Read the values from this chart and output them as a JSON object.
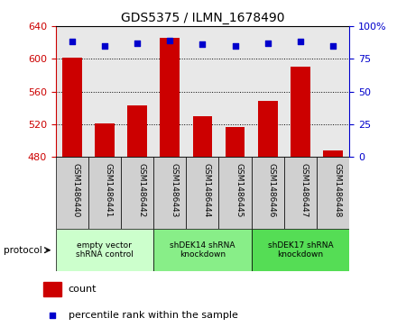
{
  "title": "GDS5375 / ILMN_1678490",
  "samples": [
    "GSM1486440",
    "GSM1486441",
    "GSM1486442",
    "GSM1486443",
    "GSM1486444",
    "GSM1486445",
    "GSM1486446",
    "GSM1486447",
    "GSM1486448"
  ],
  "counts": [
    602,
    521,
    543,
    626,
    530,
    517,
    549,
    591,
    488
  ],
  "percentile_ranks": [
    88,
    85,
    87,
    89,
    86,
    85,
    87,
    88,
    85
  ],
  "ylim_left": [
    480,
    640
  ],
  "ylim_right": [
    0,
    100
  ],
  "yticks_left": [
    480,
    520,
    560,
    600,
    640
  ],
  "yticks_right": [
    0,
    25,
    50,
    75,
    100
  ],
  "bar_color": "#cc0000",
  "dot_color": "#0000cc",
  "bar_width": 0.6,
  "protocols": [
    {
      "label": "empty vector\nshRNA control",
      "start": 0,
      "end": 3
    },
    {
      "label": "shDEK14 shRNA\nknockdown",
      "start": 3,
      "end": 6
    },
    {
      "label": "shDEK17 shRNA\nknockdown",
      "start": 6,
      "end": 9
    }
  ],
  "proto_colors": [
    "#ccffcc",
    "#88ee88",
    "#55dd55"
  ],
  "protocol_label": "protocol",
  "legend_count_label": "count",
  "legend_pct_label": "percentile rank within the sample",
  "plot_bg": "#e8e8e8",
  "xtick_bg": "#d0d0d0"
}
